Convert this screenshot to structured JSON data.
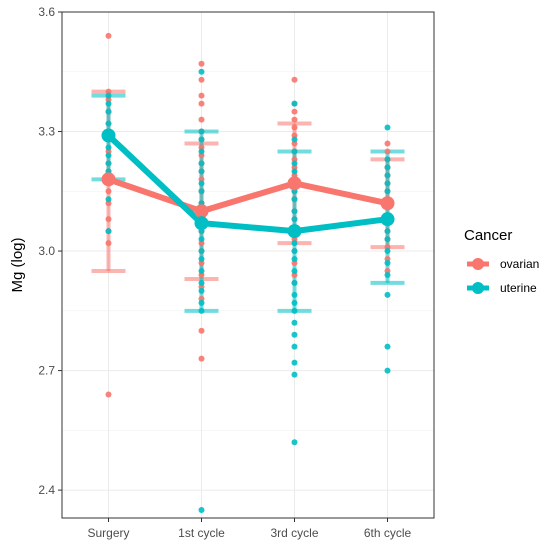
{
  "chart_data": {
    "type": "scatter",
    "title": "",
    "xlabel": "",
    "ylabel": "Mg (log)",
    "categories": [
      "Surgery",
      "1st cycle",
      "3rd cycle",
      "6th cycle"
    ],
    "ylim": [
      2.33,
      3.6
    ],
    "yticks": [
      2.4,
      2.7,
      3.0,
      3.3,
      3.6
    ],
    "ytick_labels": [
      "2.4",
      "2.7",
      "3.0",
      "3.3",
      "3.6"
    ],
    "grid": true,
    "legend": {
      "title": "Cancer",
      "position": "right"
    },
    "series": [
      {
        "name": "ovarian",
        "color": "#F8766D",
        "means": [
          3.18,
          3.1,
          3.17,
          3.12
        ],
        "error_low": [
          2.95,
          2.93,
          3.02,
          3.01
        ],
        "error_high": [
          3.4,
          3.27,
          3.32,
          3.23
        ],
        "points": [
          [
            3.54,
            3.4,
            3.38,
            3.35,
            3.32,
            3.3,
            3.28,
            3.25,
            3.22,
            3.2,
            3.18,
            3.15,
            3.12,
            3.08,
            3.05,
            3.02,
            2.64
          ],
          [
            3.47,
            3.43,
            3.39,
            3.37,
            3.33,
            3.3,
            3.28,
            3.26,
            3.24,
            3.22,
            3.2,
            3.18,
            3.15,
            3.12,
            3.1,
            3.07,
            3.05,
            3.02,
            3.0,
            2.97,
            2.94,
            2.91,
            2.88,
            2.8,
            2.73
          ],
          [
            3.43,
            3.37,
            3.35,
            3.33,
            3.31,
            3.29,
            3.27,
            3.25,
            3.23,
            3.21,
            3.19,
            3.17,
            3.15,
            3.13,
            3.1,
            3.08,
            3.05,
            3.03,
            3.0,
            2.97,
            2.94,
            2.92
          ],
          [
            3.27,
            3.25,
            3.23,
            3.21,
            3.19,
            3.17,
            3.15,
            3.13,
            3.11,
            3.09,
            3.07,
            3.05,
            3.03,
            3.01,
            2.98,
            2.95
          ]
        ]
      },
      {
        "name": "uterine",
        "color": "#00BFC4",
        "means": [
          3.29,
          3.07,
          3.05,
          3.08
        ],
        "error_low": [
          3.18,
          2.85,
          2.85,
          2.92
        ],
        "error_high": [
          3.39,
          3.3,
          3.25,
          3.25
        ],
        "points": [
          [
            3.39,
            3.37,
            3.35,
            3.32,
            3.3,
            3.28,
            3.26,
            3.24,
            3.22,
            3.2,
            3.17,
            3.13,
            3.05
          ],
          [
            3.45,
            3.3,
            3.28,
            3.25,
            3.22,
            3.2,
            3.17,
            3.15,
            3.12,
            3.1,
            3.07,
            3.05,
            3.03,
            3.0,
            2.98,
            2.95,
            2.92,
            2.9,
            2.87,
            2.85,
            2.35
          ],
          [
            3.37,
            3.28,
            3.25,
            3.22,
            3.2,
            3.18,
            3.15,
            3.13,
            3.1,
            3.08,
            3.06,
            3.04,
            3.02,
            3.0,
            2.98,
            2.95,
            2.92,
            2.89,
            2.87,
            2.85,
            2.82,
            2.79,
            2.76,
            2.72,
            2.69,
            2.52
          ],
          [
            3.31,
            3.23,
            3.21,
            3.19,
            3.17,
            3.15,
            3.13,
            3.11,
            3.09,
            3.07,
            3.05,
            3.03,
            3.0,
            2.97,
            2.94,
            2.89,
            2.76,
            2.7
          ]
        ]
      }
    ]
  }
}
